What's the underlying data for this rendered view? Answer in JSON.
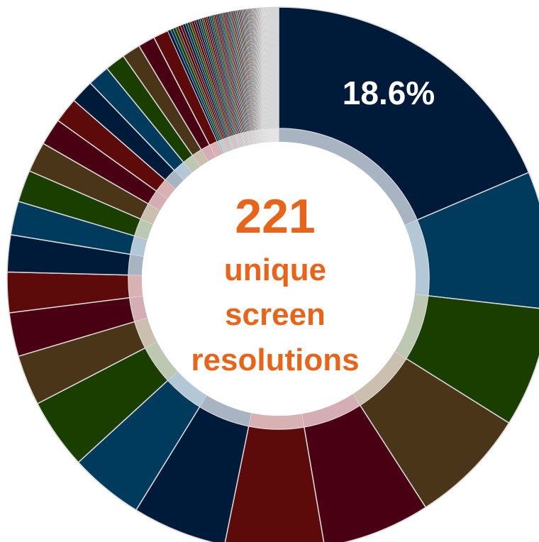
{
  "chart_data": {
    "type": "pie",
    "donut": true,
    "total_segments": 221,
    "largest_slice_percent": 18.6,
    "largest_slice_label": "18.6%",
    "center_count": "221",
    "center_label_lines": [
      "unique",
      "screen",
      "resolutions"
    ],
    "major_slice_percents": [
      18.6,
      8.2,
      7.1,
      7.0,
      6.4,
      5.9,
      5.6,
      4.4,
      4.2,
      3.0,
      2.6,
      2.4,
      2.2,
      2.0,
      1.9,
      1.8,
      1.6,
      1.5,
      1.4,
      1.3,
      1.2,
      1.1,
      1.0,
      0.9
    ],
    "tail_slice_count": 197,
    "palette": [
      "#001a3a",
      "#003a5c",
      "#1a3d00",
      "#4a3519",
      "#4a0012",
      "#5c0a0a"
    ],
    "inner_ring_color": "#c8d0d8",
    "center_color": "#e8641b"
  }
}
